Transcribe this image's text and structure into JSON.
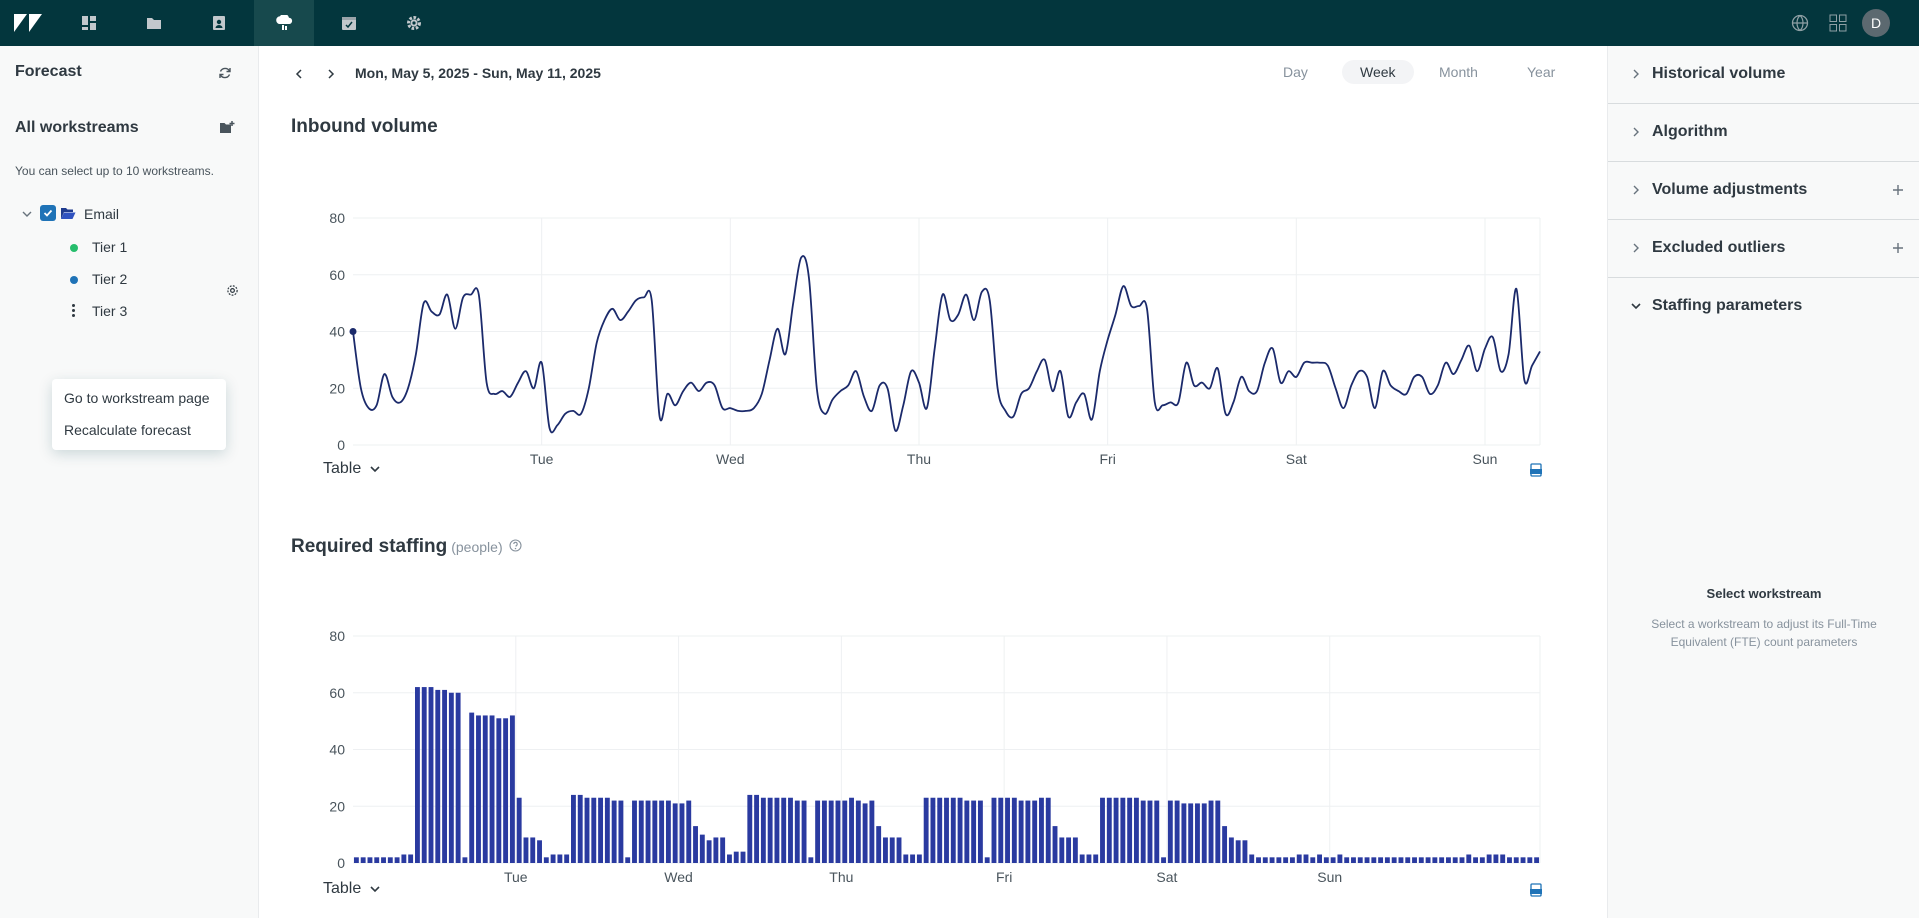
{
  "topbar": {
    "icons": [
      "zendesk-logo-icon",
      "dashboard-icon",
      "folder-icon",
      "contacts-icon",
      "forecast-icon",
      "schedule-icon",
      "settings-icon"
    ],
    "active": "forecast-icon",
    "right_icons": [
      "globe-icon",
      "apps-grid-icon"
    ],
    "avatar_initial": "D"
  },
  "sidebar": {
    "title": "Forecast",
    "section_title": "All workstreams",
    "hint": "You can select up to 10 workstreams.",
    "tree": {
      "group_label": "Email",
      "group_checked": true,
      "tiers": [
        {
          "label": "Tier 1",
          "color": "#26bd6c"
        },
        {
          "label": "Tier 2",
          "color": "#1f73b7"
        },
        {
          "label": "Tier 3",
          "color": ""
        }
      ]
    },
    "context_menu": [
      "Go to workstream page",
      "Recalculate forecast"
    ]
  },
  "main": {
    "date_range": "Mon, May 5, 2025 - Sun, May 11, 2025",
    "periods": [
      "Day",
      "Week",
      "Month",
      "Year"
    ],
    "selected_period": "Week",
    "inbound": {
      "title": "Inbound volume",
      "table_label": "Table"
    },
    "staffing": {
      "title": "Required staffing",
      "subtitle": "(people)",
      "table_label": "Table"
    }
  },
  "chart_data": [
    {
      "type": "line",
      "title": "Inbound volume",
      "xlabel": "",
      "ylabel": "",
      "ylim": [
        0,
        80
      ],
      "yticks": [
        0,
        20,
        40,
        60,
        80
      ],
      "xlim": [
        0,
        168
      ],
      "xticks": [
        {
          "x": 24,
          "label": "Tue"
        },
        {
          "x": 48,
          "label": "Wed"
        },
        {
          "x": 72,
          "label": "Thu"
        },
        {
          "x": 96,
          "label": "Fri"
        },
        {
          "x": 120,
          "label": "Sat"
        },
        {
          "x": 144,
          "label": "Sun"
        }
      ],
      "grid": true,
      "color": "#1b2a6b",
      "y": [
        40,
        20,
        13,
        14,
        25,
        17,
        15,
        20,
        32,
        50,
        47,
        46,
        53,
        41,
        52,
        53,
        53,
        22,
        18,
        19,
        17,
        22,
        26,
        20,
        29,
        6,
        7,
        11,
        12,
        11,
        20,
        36,
        44,
        48,
        44,
        47,
        51,
        52,
        51,
        10,
        18,
        14,
        19,
        22,
        19,
        22,
        21,
        13,
        13,
        12,
        12,
        13,
        18,
        30,
        41,
        32,
        50,
        66,
        59,
        20,
        11,
        16,
        19,
        21,
        26,
        17,
        12,
        21,
        20,
        5,
        14,
        26,
        22,
        13,
        34,
        53,
        44,
        46,
        53,
        44,
        54,
        51,
        20,
        12,
        10,
        18,
        20,
        26,
        30,
        19,
        26,
        10,
        15,
        18,
        9,
        26,
        37,
        46,
        56,
        49,
        49,
        48,
        15,
        14,
        15,
        15,
        29,
        21,
        22,
        20,
        27,
        11,
        15,
        24,
        19,
        19,
        29,
        34,
        22,
        26,
        24,
        29,
        29,
        29,
        28,
        20,
        13,
        21,
        26,
        24,
        13,
        26,
        21,
        19,
        18,
        24,
        24,
        18,
        21,
        29,
        25,
        30,
        35,
        26,
        34,
        38,
        26,
        32,
        55,
        23,
        28,
        33
      ],
      "first_point_marker": true
    },
    {
      "type": "bar",
      "title": "Required staffing",
      "subtitle": "(people)",
      "xlabel": "",
      "ylabel": "",
      "ylim": [
        0,
        80
      ],
      "yticks": [
        0,
        20,
        40,
        60,
        80
      ],
      "xticks": [
        {
          "x": 24,
          "label": "Tue"
        },
        {
          "x": 48,
          "label": "Wed"
        },
        {
          "x": 72,
          "label": "Thu"
        },
        {
          "x": 96,
          "label": "Fri"
        },
        {
          "x": 120,
          "label": "Sat"
        },
        {
          "x": 144,
          "label": "Sun"
        }
      ],
      "grid": true,
      "color": "#2a3aa0",
      "values": [
        2,
        2,
        2,
        2,
        2,
        2,
        2,
        3,
        3,
        62,
        62,
        62,
        61,
        61,
        60,
        60,
        2,
        53,
        52,
        52,
        52,
        51,
        51,
        52,
        23,
        9,
        9,
        8,
        2,
        3,
        3,
        3,
        24,
        24,
        23,
        23,
        23,
        23,
        22,
        22,
        2,
        22,
        22,
        22,
        22,
        22,
        22,
        21,
        21,
        22,
        13,
        10,
        8,
        9,
        9,
        3,
        4,
        4,
        24,
        24,
        23,
        23,
        23,
        23,
        23,
        22,
        22,
        2,
        22,
        22,
        22,
        22,
        22,
        23,
        22,
        21,
        22,
        13,
        9,
        9,
        9,
        3,
        3,
        3,
        23,
        23,
        23,
        23,
        23,
        23,
        22,
        22,
        22,
        2,
        23,
        23,
        23,
        23,
        22,
        22,
        22,
        23,
        23,
        13,
        9,
        9,
        9,
        3,
        3,
        3,
        23,
        23,
        23,
        23,
        23,
        23,
        22,
        22,
        22,
        2,
        22,
        22,
        21,
        21,
        21,
        21,
        22,
        22,
        13,
        9,
        8,
        8,
        3,
        2,
        2,
        2,
        2,
        2,
        2,
        3,
        3,
        2,
        3,
        2,
        2,
        3,
        2,
        2,
        2,
        2,
        2,
        2,
        2,
        2,
        2,
        2,
        2,
        2,
        2,
        2,
        2,
        2,
        2,
        2,
        3,
        2,
        2,
        3,
        3,
        3,
        2,
        2,
        2,
        2,
        2
      ]
    }
  ],
  "right_panel": {
    "sections": [
      {
        "label": "Historical volume",
        "expanded": false,
        "add": false
      },
      {
        "label": "Algorithm",
        "expanded": false,
        "add": false
      },
      {
        "label": "Volume adjustments",
        "expanded": false,
        "add": true
      },
      {
        "label": "Excluded outliers",
        "expanded": false,
        "add": true
      },
      {
        "label": "Staffing parameters",
        "expanded": true,
        "add": false
      }
    ],
    "empty_title": "Select workstream",
    "empty_desc": "Select a workstream to adjust its Full-Time Equivalent (FTE) count parameters"
  }
}
